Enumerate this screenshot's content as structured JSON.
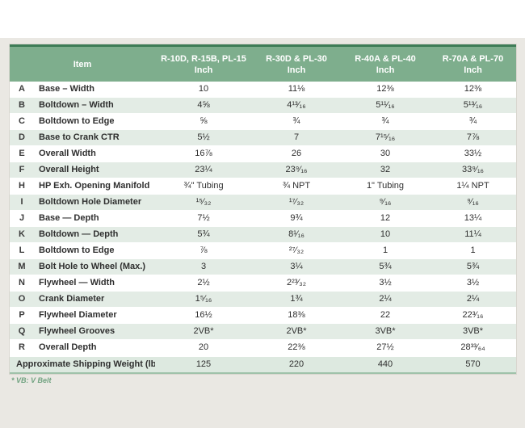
{
  "colors": {
    "header_green": "#7eae8d",
    "top_border_green": "#3e7c57",
    "stripe_green": "#e3ece5",
    "footer_green": "#dde9e0",
    "page_gray": "#eae8e3",
    "footnote_green": "#71a381"
  },
  "table": {
    "columns": [
      {
        "label": "Item",
        "sub": ""
      },
      {
        "label": "R-10D, R-15B, PL-15",
        "sub": "Inch"
      },
      {
        "label": "R-30D & PL-30",
        "sub": "Inch"
      },
      {
        "label": "R-40A & PL-40",
        "sub": "Inch"
      },
      {
        "label": "R-70A & PL-70",
        "sub": "Inch"
      }
    ],
    "rows": [
      {
        "key": "A",
        "item": "Base – Width",
        "values": [
          "10",
          "11⅛",
          "12⅜",
          "12⅜"
        ]
      },
      {
        "key": "B",
        "item": "Boltdown – Width",
        "values": [
          "4⅝",
          "4¹³⁄₁₆",
          "5¹¹⁄₁₆",
          "5¹³⁄₁₆"
        ]
      },
      {
        "key": "C",
        "item": "Boltdown to Edge",
        "values": [
          "⅝",
          "¾",
          "¾",
          "¾"
        ]
      },
      {
        "key": "D",
        "item": "Base to Crank CTR",
        "values": [
          "5½",
          "7",
          "7¹⁵⁄₁₆",
          "7⅞"
        ]
      },
      {
        "key": "E",
        "item": "Overall Width",
        "values": [
          "16⅞",
          "26",
          "30",
          "33½"
        ]
      },
      {
        "key": "F",
        "item": "Overall Height",
        "values": [
          "23¼",
          "23⁹⁄₁₆",
          "32",
          "33⁹⁄₁₆"
        ]
      },
      {
        "key": "H",
        "item": "HP Exh. Opening Manifold",
        "values": [
          "¾\" Tubing",
          "¾ NPT",
          "1\" Tubing",
          "1¼ NPT"
        ]
      },
      {
        "key": "I",
        "item": "Boltdown Hole Diameter",
        "values": [
          "¹⁵⁄₃₂",
          "¹⁷⁄₃₂",
          "⁹⁄₁₆",
          "⁹⁄₁₆"
        ]
      },
      {
        "key": "J",
        "item": "Base — Depth",
        "values": [
          "7½",
          "9¾",
          "12",
          "13¼"
        ]
      },
      {
        "key": "K",
        "item": "Boltdown — Depth",
        "values": [
          "5¾",
          "8¹⁄₁₆",
          "10",
          "11¼"
        ]
      },
      {
        "key": "L",
        "item": "Boltdown to Edge",
        "values": [
          "⅞",
          "²⁷⁄₃₂",
          "1",
          "1"
        ]
      },
      {
        "key": "M",
        "item": "Bolt Hole to Wheel (Max.)",
        "values": [
          "3",
          "3¼",
          "5¾",
          "5¾"
        ]
      },
      {
        "key": "N",
        "item": "Flywheel — Width",
        "values": [
          "2½",
          "2²³⁄₃₂",
          "3½",
          "3½"
        ]
      },
      {
        "key": "O",
        "item": "Crank Diameter",
        "values": [
          "1⁵⁄₁₆",
          "1¾",
          "2¼",
          "2¼"
        ]
      },
      {
        "key": "P",
        "item": "Flywheel Diameter",
        "values": [
          "16½",
          "18⅜",
          "22",
          "22³⁄₁₆"
        ]
      },
      {
        "key": "Q",
        "item": "Flywheel Grooves",
        "values": [
          "2VB*",
          "2VB*",
          "3VB*",
          "3VB*"
        ]
      },
      {
        "key": "R",
        "item": "Overall Depth",
        "values": [
          "20",
          "22⅜",
          "27½",
          "28³³⁄₆₄"
        ]
      }
    ],
    "footer_row": {
      "label": "Approximate Shipping Weight (lbs.)",
      "values": [
        "125",
        "220",
        "440",
        "570"
      ]
    },
    "footnote": "* VB: V Belt"
  }
}
